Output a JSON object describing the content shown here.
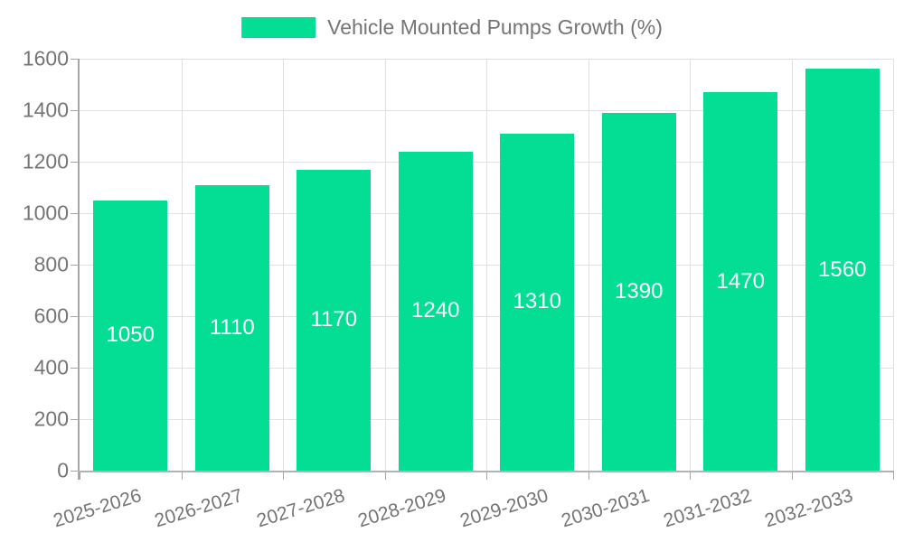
{
  "chart_data": {
    "type": "bar",
    "title": "Vehicle Mounted Pumps Growth (%)",
    "legend": {
      "label": "Vehicle Mounted Pumps Growth (%)",
      "position": "top"
    },
    "categories": [
      "2025-2026",
      "2026-2027",
      "2027-2028",
      "2028-2029",
      "2029-2030",
      "2030-2031",
      "2031-2032",
      "2032-2033"
    ],
    "values": [
      1050,
      1110,
      1170,
      1240,
      1310,
      1390,
      1470,
      1560
    ],
    "value_labels": [
      "1050",
      "1110",
      "1170",
      "1240",
      "1310",
      "1390",
      "1470",
      "1560"
    ],
    "xlabel": "",
    "ylabel": "",
    "ylim": [
      0,
      1600
    ],
    "yticks": [
      0,
      200,
      400,
      600,
      800,
      1000,
      1200,
      1400,
      1600
    ],
    "grid": true,
    "colors": {
      "bar": "#03de94",
      "value_label": "#ffffff",
      "grid_line": "#e0e0e0",
      "axis_line": "#a6a6a6",
      "tick_label": "#757575",
      "background": "#ffffff"
    }
  }
}
